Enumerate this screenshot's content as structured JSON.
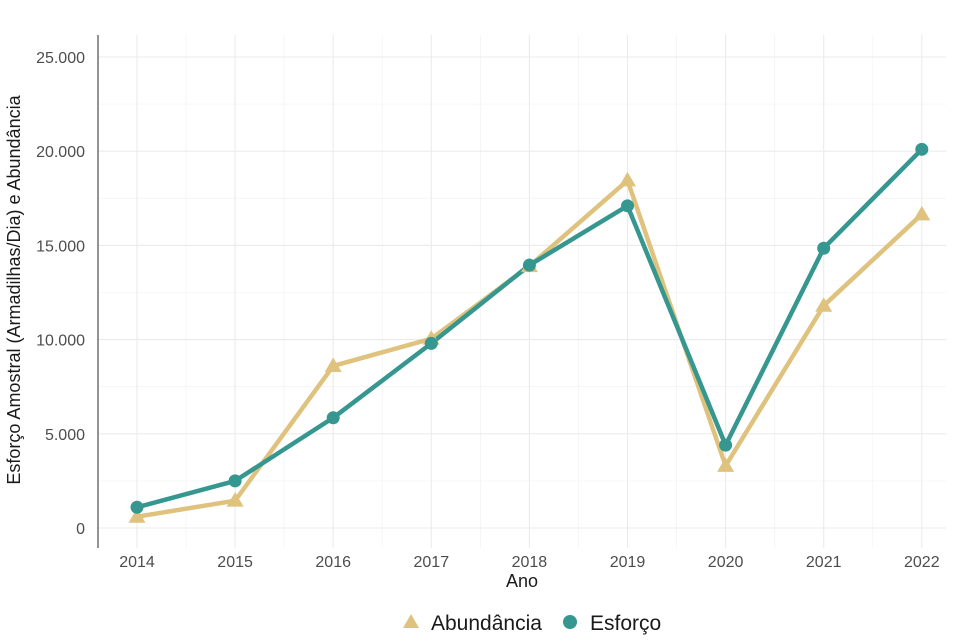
{
  "chart_data": {
    "type": "line",
    "x": [
      2014,
      2015,
      2016,
      2017,
      2018,
      2019,
      2020,
      2021,
      2022
    ],
    "series": [
      {
        "name": "Abundância",
        "color": "#dfc27d",
        "marker": "triangle",
        "values": [
          600,
          1450,
          8600,
          10050,
          13900,
          18450,
          3300,
          11800,
          16650
        ]
      },
      {
        "name": "Esforço",
        "color": "#35978f",
        "marker": "circle",
        "values": [
          1100,
          2500,
          5850,
          9800,
          13950,
          17100,
          4400,
          14850,
          20100
        ]
      }
    ],
    "xlabel": "Ano",
    "ylabel": "Esforço Amostral (Armadilhas/Dia) e Abundância",
    "ylim": [
      0,
      26000
    ],
    "y_ticks": [
      0,
      5000,
      10000,
      15000,
      20000,
      25000
    ],
    "y_tick_labels": [
      "0",
      "5.000",
      "10.000",
      "15.000",
      "20.000",
      "25.000"
    ],
    "x_tick_labels": [
      "2014",
      "2015",
      "2016",
      "2017",
      "2018",
      "2019",
      "2020",
      "2021",
      "2022"
    ],
    "grid": true,
    "legend_position": "bottom"
  }
}
